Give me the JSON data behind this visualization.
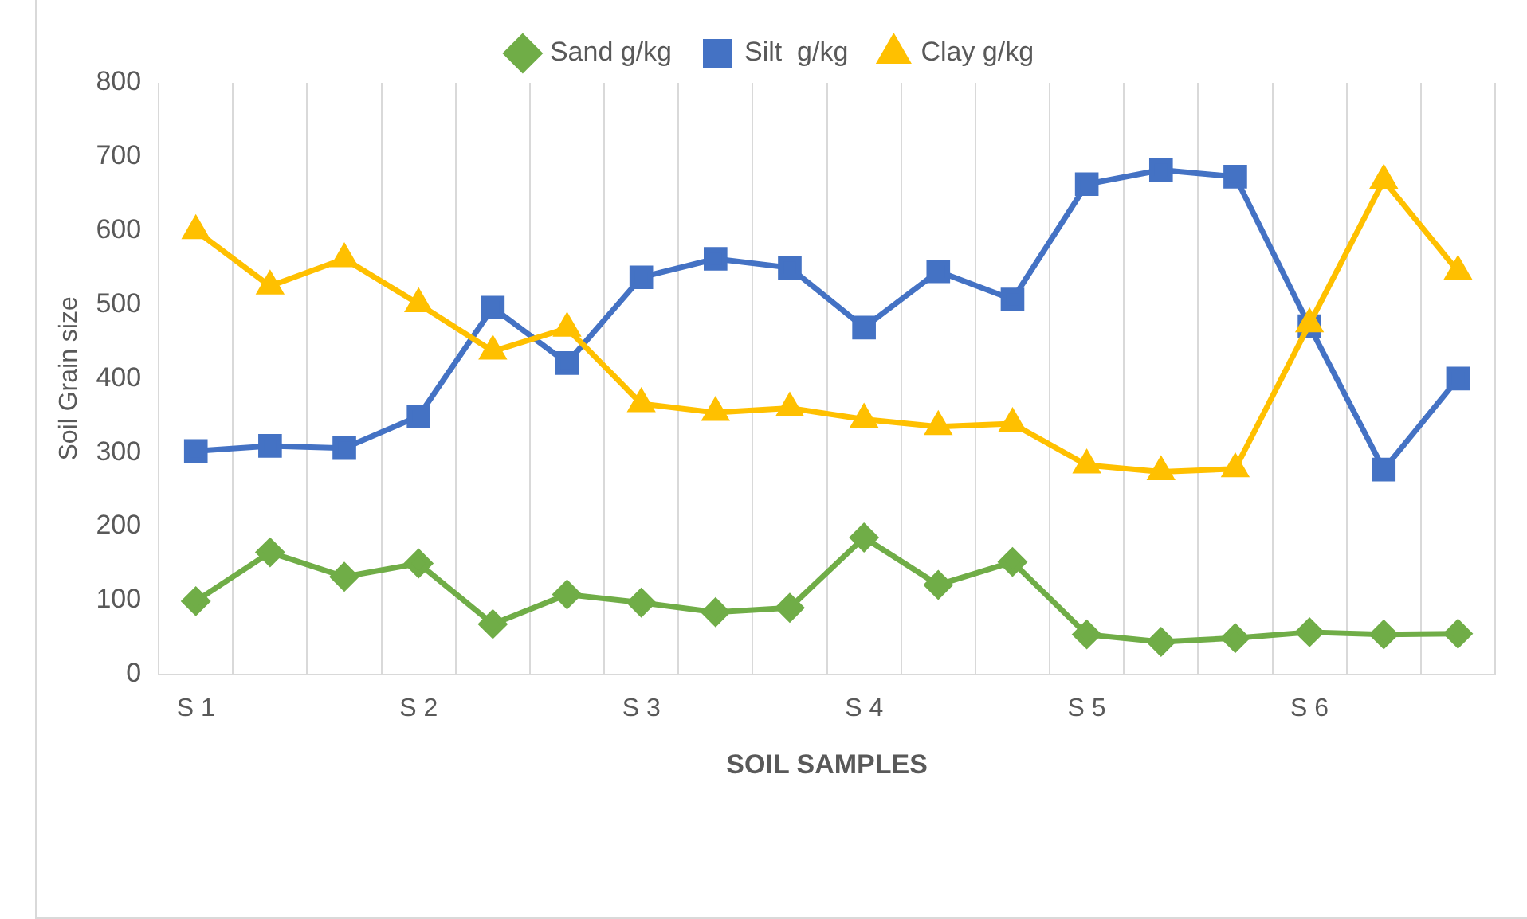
{
  "chart_data": {
    "type": "line",
    "xlabel": "SOIL SAMPLES",
    "ylabel": "Soil Grain size",
    "categories": [
      "S 1",
      null,
      null,
      "S 2",
      null,
      null,
      "S 3",
      null,
      null,
      "S 4",
      null,
      null,
      "S 5",
      null,
      null,
      "S 6",
      null,
      null
    ],
    "series": [
      {
        "name": "Sand g/kg",
        "color": "#70ad47",
        "marker": "diamond",
        "values": [
          99,
          165,
          132,
          150,
          68,
          108,
          97,
          84,
          90,
          185,
          121,
          152,
          54,
          44,
          49,
          57,
          54,
          55
        ]
      },
      {
        "name": "Silt  g/kg",
        "color": "#4472c4",
        "marker": "square",
        "values": [
          302,
          309,
          306,
          349,
          496,
          421,
          537,
          562,
          550,
          469,
          545,
          507,
          663,
          682,
          673,
          471,
          277,
          400
        ]
      },
      {
        "name": "Clay g/kg",
        "color": "#ffc000",
        "marker": "triangle",
        "values": [
          600,
          525,
          562,
          501,
          437,
          468,
          366,
          354,
          360,
          345,
          335,
          339,
          283,
          274,
          278,
          474,
          668,
          545
        ]
      }
    ],
    "ylim": [
      0,
      800
    ],
    "yticks": [
      0,
      100,
      200,
      300,
      400,
      500,
      600,
      700,
      800
    ],
    "grid": "x",
    "legend": "top"
  }
}
